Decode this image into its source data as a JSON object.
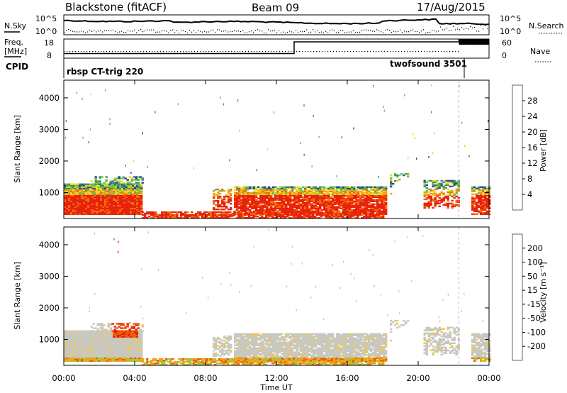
{
  "header": {
    "station": "Blackstone (fitACF)",
    "beam": "Beam 09",
    "date": "17/Aug/2015"
  },
  "summary": {
    "nsky_label": "N.Sky",
    "nsearch_label": "N.Search",
    "freq_label_1": "Freq.",
    "freq_label_2": "[MHz]",
    "nave_label": "Nave",
    "cpid_label": "CPID",
    "left_ticks_noise": [
      "10^5",
      "10^0"
    ],
    "right_ticks_noise": [
      "10^5",
      "10^0"
    ],
    "left_ticks_freq": [
      "18",
      "8"
    ],
    "right_ticks_nave": [
      "60",
      "0"
    ],
    "cpid_entries": [
      {
        "name": "rbsp CT-trig 220",
        "start_hour": 0.0,
        "end_hour": 22.3
      },
      {
        "name": "twofsound 3501",
        "start_hour": 22.3,
        "end_hour": 24.0
      }
    ],
    "freq_segments": [
      {
        "start_hour": 0.0,
        "end_hour": 13.0,
        "mhz": 10.2
      },
      {
        "start_hour": 13.0,
        "end_hour": 22.3,
        "mhz": 16.8
      },
      {
        "start_hour": 22.3,
        "end_hour": 24.0,
        "mhz": 18.0
      }
    ]
  },
  "chart_data": [
    {
      "type": "heatmap",
      "quantity": "power",
      "ylabel": "Slant Range [km]",
      "yticks": [
        1000,
        2000,
        3000,
        4000
      ],
      "ylim": [
        180,
        4560
      ],
      "xlim_hours": [
        0,
        24
      ],
      "colorbar": {
        "label": "Power [dB]",
        "ticks": [
          "4",
          "8",
          "12",
          "16",
          "20",
          "24",
          "28"
        ],
        "colors": [
          "#1a1aff",
          "#28489b",
          "#3c8c6e",
          "#6dbf4d",
          "#f2d21e",
          "#f5a011",
          "#f46a0d",
          "#e8230d"
        ]
      }
    },
    {
      "type": "heatmap",
      "quantity": "velocity",
      "ylabel": "Slant Range [km]",
      "yticks": [
        1000,
        2000,
        3000,
        4000
      ],
      "ylim": [
        180,
        4560
      ],
      "xlim_hours": [
        0,
        24
      ],
      "xlabel": "Time UT",
      "xticks": [
        "00:00",
        "04:00",
        "08:00",
        "12:00",
        "16:00",
        "20:00",
        "00:00"
      ],
      "colorbar": {
        "label": "Velocity [m s⁻¹]",
        "ticks": [
          "200",
          "100",
          "50",
          "15",
          "-15",
          "-50",
          "-100",
          "-200"
        ],
        "colors": [
          "#1e28c8",
          "#2a6e46",
          "#3d9e28",
          "#8cd24b",
          "#c8c8c0",
          "#f2c84b",
          "#f5a014",
          "#f05a0c",
          "#e81e0c"
        ]
      }
    }
  ]
}
